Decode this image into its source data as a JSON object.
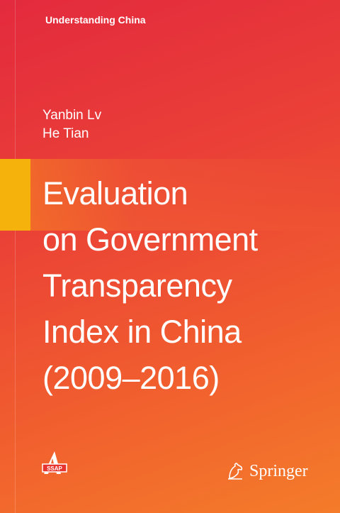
{
  "cover": {
    "series": "Understanding China",
    "authors": [
      "Yanbin Lv",
      "He Tian"
    ],
    "title_lines": [
      "Evaluation",
      "on Government",
      "Transparency",
      "Index in China",
      "(2009–2016)"
    ],
    "publisher_logo_text": "SSAP",
    "publisher": "Springer",
    "accent_color": "#f6b20c"
  }
}
